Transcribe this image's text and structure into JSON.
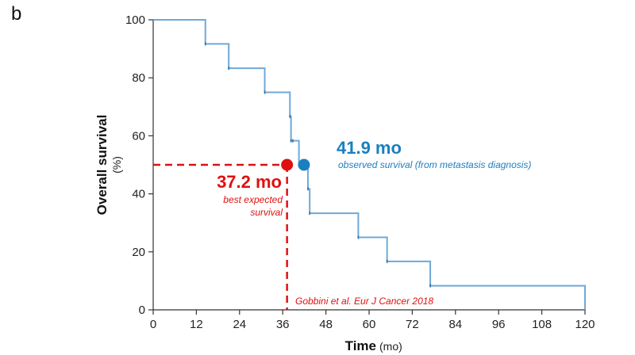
{
  "panel_label": "b",
  "chart_data": {
    "type": "line",
    "title": "",
    "xlabel": "Time",
    "xlabel_unit": "(mo)",
    "ylabel": "Overall survival",
    "ylabel_unit": "(%)",
    "xlim": [
      0,
      120
    ],
    "ylim": [
      0,
      100
    ],
    "xticks": [
      0,
      12,
      24,
      36,
      48,
      60,
      72,
      84,
      96,
      108,
      120
    ],
    "yticks": [
      0,
      20,
      40,
      60,
      80,
      100
    ],
    "grid": false,
    "series": [
      {
        "step": true,
        "color": "#6fa8d8",
        "x": [
          0,
          14.5,
          21,
          31,
          38,
          38.3,
          38.8,
          40.5,
          43,
          43.5,
          57,
          65,
          77,
          120
        ],
        "y": [
          100,
          91.7,
          83.3,
          75,
          66.7,
          58.3,
          58.3,
          50,
          41.7,
          33.3,
          25,
          16.7,
          8.3,
          0
        ]
      }
    ],
    "annotations": {
      "observed": {
        "value_label": "41.9 mo",
        "caption": "observed survival (from metastasis diagnosis)",
        "x": 41.9,
        "y": 50,
        "color": "#1a7fc1"
      },
      "expected": {
        "value_label": "37.2 mo",
        "caption_line1": "best expected",
        "caption_line2": "survival",
        "x": 37.2,
        "y": 50,
        "color": "#e01010",
        "reference": "Gobbini et al. Eur J Cancer 2018"
      }
    }
  }
}
